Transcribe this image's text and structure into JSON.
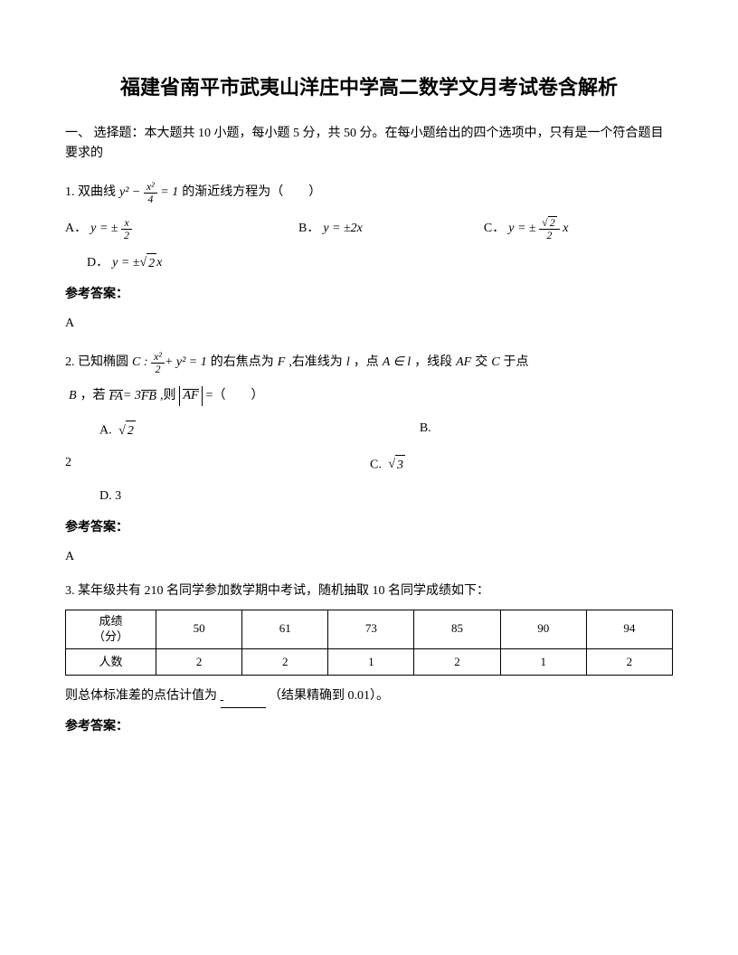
{
  "title": "福建省南平市武夷山洋庄中学高二数学文月考试卷含解析",
  "section_header": "一、 选择题：本大题共 10 小题，每小题 5 分，共 50 分。在每小题给出的四个选项中，只有是一个符合题目要求的",
  "q1": {
    "prefix": "1. 双曲线",
    "eq_lhs_num": "x²",
    "eq_lhs_den": "4",
    "eq_text_after": "的渐近线方程为（　　）",
    "optA_label": "A．",
    "optA_num": "x",
    "optA_den": "2",
    "optB_label": "B．",
    "optB_text": "y = ±2x",
    "optC_label": "C．",
    "optC_num_sqrt": "2",
    "optC_den": "2",
    "optD_label": "D．",
    "optD_sqrt": "2",
    "answer_label": "参考答案：",
    "answer": "A"
  },
  "q2": {
    "prefix": "2. 已知椭圆",
    "c_label": "C :",
    "eq_num": "x²",
    "eq_den": "2",
    "eq_plus": "+ y² = 1",
    "text1": "的右焦点为",
    "F": "F",
    "text2": ",右准线为",
    "l": "l",
    "text3": "，点",
    "A_in_l": "A ∈ l",
    "text4": "，线段",
    "AF": "AF",
    "text5": "交",
    "C": "C",
    "text6": "于点",
    "B": "B",
    "text7": "，若",
    "FA": "FA",
    "eq3": "= 3",
    "FB": "FB",
    "text8": ",则",
    "AF2": "AF",
    "text9": "=（　　）",
    "optA_label": "A.",
    "optA_sqrt": "2",
    "optB_label": "B.",
    "row2_2": "2",
    "optC_label": "C.",
    "optC_sqrt": "3",
    "optD_label": "D. 3",
    "answer_label": "参考答案：",
    "answer": "A"
  },
  "q3": {
    "text": "3. 某年级共有 210 名同学参加数学期中考试，随机抽取 10 名同学成绩如下：",
    "table": {
      "row1_label_l1": "成绩",
      "row1_label_l2": "（分）",
      "row1": [
        "50",
        "61",
        "73",
        "85",
        "90",
        "94"
      ],
      "row2_label": "人数",
      "row2": [
        "2",
        "2",
        "1",
        "2",
        "1",
        "2"
      ]
    },
    "text2_pre": "则总体标准差的点估计值为",
    "text2_post": "（结果精确到 0.01）。",
    "answer_label": "参考答案："
  }
}
